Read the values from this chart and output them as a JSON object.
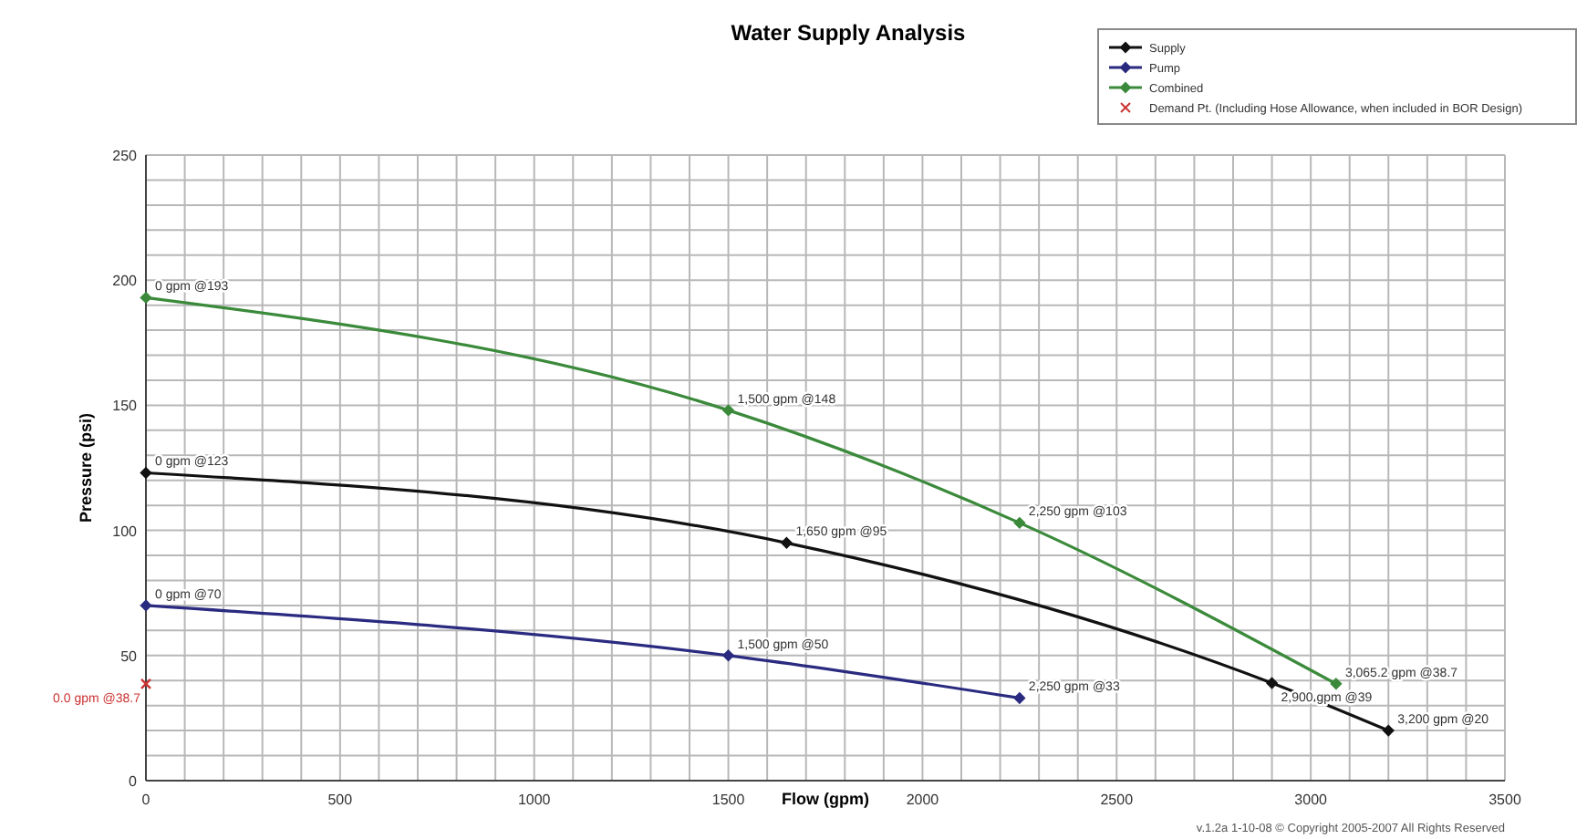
{
  "chart_data": {
    "type": "line",
    "title": "Water Supply Analysis",
    "xlabel": "Flow (gpm)",
    "ylabel": "Pressure (psi)",
    "xlim": [
      0,
      3500
    ],
    "ylim": [
      0,
      250
    ],
    "xticks": [
      0,
      {
        "value": 100,
        "label": null
      },
      {
        "value": 200,
        "label": null
      },
      {
        "value": 300,
        "label": null
      },
      {
        "value": 400,
        "label": null
      },
      500,
      {
        "value": 600,
        "label": null
      },
      {
        "value": 700,
        "label": null
      },
      {
        "value": 800,
        "label": null
      },
      {
        "value": 900,
        "label": null
      },
      1000,
      {
        "value": 1100,
        "label": null
      },
      {
        "value": 1200,
        "label": null
      },
      {
        "value": 1300,
        "label": null
      },
      {
        "value": 1400,
        "label": null
      },
      1500,
      {
        "value": 1600,
        "label": null
      },
      {
        "value": 1700,
        "label": null
      },
      {
        "value": 1800,
        "label": null
      },
      {
        "value": 1900,
        "label": null
      },
      2000,
      {
        "value": 2100,
        "label": null
      },
      {
        "value": 2200,
        "label": null
      },
      {
        "value": 2300,
        "label": null
      },
      {
        "value": 2400,
        "label": null
      },
      2500,
      {
        "value": 2600,
        "label": null
      },
      {
        "value": 2700,
        "label": null
      },
      {
        "value": 2800,
        "label": null
      },
      {
        "value": 2900,
        "label": null
      },
      3000,
      {
        "value": 3100,
        "label": null
      },
      {
        "value": 3200,
        "label": null
      },
      {
        "value": 3300,
        "label": null
      },
      {
        "value": 3400,
        "label": null
      },
      3500
    ],
    "yticks": [
      0,
      {
        "value": 10,
        "label": null
      },
      {
        "value": 20,
        "label": null
      },
      {
        "value": 30,
        "label": null
      },
      {
        "value": 40,
        "label": null
      },
      50,
      {
        "value": 60,
        "label": null
      },
      {
        "value": 70,
        "label": null
      },
      {
        "value": 80,
        "label": null
      },
      {
        "value": 90,
        "label": null
      },
      100,
      {
        "value": 110,
        "label": null
      },
      {
        "value": 120,
        "label": null
      },
      {
        "value": 130,
        "label": null
      },
      {
        "value": 140,
        "label": null
      },
      150,
      {
        "value": 160,
        "label": null
      },
      {
        "value": 170,
        "label": null
      },
      {
        "value": 180,
        "label": null
      },
      {
        "value": 190,
        "label": null
      },
      200,
      {
        "value": 210,
        "label": null
      },
      {
        "value": 220,
        "label": null
      },
      {
        "value": 230,
        "label": null
      },
      {
        "value": 240,
        "label": null
      },
      250
    ],
    "grid": true,
    "legend": "top right",
    "marker": "diamond",
    "line_style": "solid",
    "series": [
      {
        "name": "Supply",
        "color": "#111111",
        "x": [
          0,
          1650,
          2900,
          3200
        ],
        "values": [
          123,
          95,
          39,
          20
        ],
        "value_labels": [
          "0 gpm @123",
          "1,650 gpm @95",
          "2,900 gpm @39",
          "3,200 gpm @20"
        ]
      },
      {
        "name": "Pump",
        "color": "#2a2a80",
        "x": [
          0,
          1500,
          2250
        ],
        "values": [
          70,
          50,
          33
        ],
        "value_labels": [
          "0 gpm @70",
          "1,500 gpm @50",
          "2,250 gpm @33"
        ]
      },
      {
        "name": "Combined",
        "color": "#3b8a3b",
        "x": [
          0,
          1500,
          2250,
          3065.2
        ],
        "values": [
          193,
          148,
          103,
          38.7
        ],
        "value_labels": [
          "0 gpm @193",
          "1,500 gpm @148",
          "2,250 gpm @103",
          "3,065.2 gpm @38.7"
        ]
      },
      {
        "name": "Demand Pt. (Including Hose Allowance, when included in BOR Design)",
        "type": "scatter",
        "marker": "cross",
        "color": "#cc3333",
        "x": [
          0
        ],
        "values": [
          38.7
        ],
        "value_labels": [
          "0.0 gpm @38.7"
        ]
      }
    ],
    "annotations": [
      "v.1.2a 1-10-08 © Copyright 2005-2007 All Rights Reserved"
    ]
  }
}
